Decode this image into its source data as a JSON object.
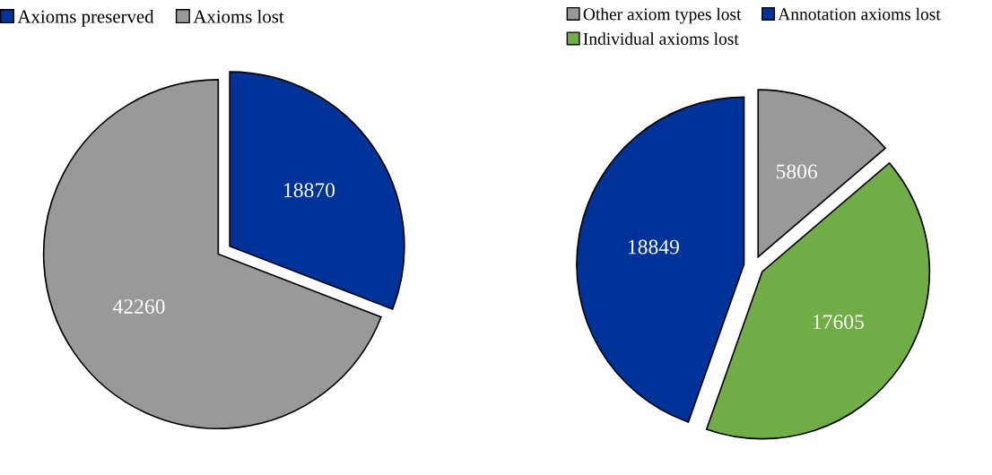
{
  "chart_data": [
    {
      "type": "pie",
      "categories": [
        "Axioms preserved",
        "Axioms lost"
      ],
      "values": [
        18870,
        42260
      ],
      "colors": [
        "#003399",
        "#999999"
      ],
      "data_labels": true,
      "legend": "top left"
    },
    {
      "type": "pie",
      "categories": [
        "Other axiom types lost",
        "Individual axioms lost",
        "Annotation axioms lost"
      ],
      "values": [
        5806,
        17605,
        18849
      ],
      "colors": [
        "#999999",
        "#70ad47",
        "#003399"
      ],
      "data_labels": true,
      "legend": "top"
    }
  ]
}
